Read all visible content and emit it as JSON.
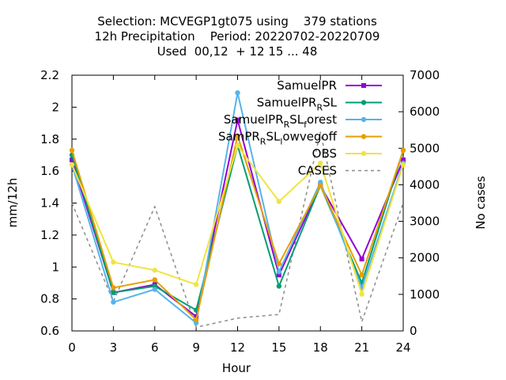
{
  "chart_data": {
    "type": "line",
    "title_lines": [
      "Selection: MCVEGP1gt075 using    379 stations",
      "12h Precipitation    Period: 20220702-20220709",
      "Used  00,12  + 12 15 ... 48"
    ],
    "xlabel": "Hour",
    "ylabel": "mm/12h",
    "y2label": "No cases",
    "x": [
      0,
      3,
      6,
      9,
      12,
      15,
      18,
      21,
      24
    ],
    "xlim": [
      0,
      24
    ],
    "ylim": [
      0.6,
      2.2
    ],
    "y2lim": [
      0,
      7000
    ],
    "xticks": [
      "0",
      "3",
      "6",
      "9",
      "12",
      "15",
      "18",
      "21",
      "24"
    ],
    "yticks": [
      "0.6",
      "0.8",
      "1",
      "1.2",
      "1.4",
      "1.6",
      "1.8",
      "2",
      "2.2"
    ],
    "y2ticks": [
      "0",
      "1000",
      "2000",
      "3000",
      "4000",
      "5000",
      "6000",
      "7000"
    ],
    "legend_position": "top-right",
    "grid": false,
    "series": [
      {
        "name": "SamuelPR",
        "label_parts": [
          [
            "SamuelPR",
            ""
          ]
        ],
        "color": "#9400d3",
        "marker": "square",
        "dash": "",
        "axis": "y",
        "values": [
          1.67,
          0.84,
          0.89,
          0.69,
          1.92,
          0.95,
          1.51,
          1.05,
          1.67
        ]
      },
      {
        "name": "SamuelPR_RSL",
        "label_parts": [
          [
            "SamuelPR",
            ""
          ],
          [
            "R",
            "sub"
          ],
          [
            "SL",
            ""
          ]
        ],
        "color": "#009e73",
        "marker": "circle",
        "dash": "",
        "axis": "y",
        "values": [
          1.7,
          0.84,
          0.88,
          0.73,
          1.76,
          0.88,
          1.51,
          0.9,
          1.73
        ]
      },
      {
        "name": "SamuelPR_RSL_forest",
        "label_parts": [
          [
            "SamuelPR",
            ""
          ],
          [
            "R",
            "sub"
          ],
          [
            "SL",
            ""
          ],
          [
            "f",
            "sub"
          ],
          [
            "orest",
            ""
          ]
        ],
        "color": "#56b4e9",
        "marker": "circle",
        "dash": "",
        "axis": "y",
        "values": [
          1.64,
          0.78,
          0.86,
          0.65,
          2.09,
          0.97,
          1.53,
          0.87,
          1.65
        ]
      },
      {
        "name": "SamPR_RSL_lowvegoff",
        "label_parts": [
          [
            "SamPR",
            ""
          ],
          [
            "R",
            "sub"
          ],
          [
            "SL",
            ""
          ],
          [
            "l",
            "sub"
          ],
          [
            "owvegoff",
            ""
          ]
        ],
        "color": "#e69f00",
        "marker": "circle",
        "dash": "",
        "axis": "y",
        "values": [
          1.73,
          0.87,
          0.92,
          0.67,
          1.82,
          1.02,
          1.51,
          0.95,
          1.73
        ]
      },
      {
        "name": "OBS",
        "label_parts": [
          [
            "OBS",
            ""
          ]
        ],
        "color": "#f0e442",
        "marker": "circle",
        "dash": "",
        "axis": "y",
        "values": [
          1.64,
          1.03,
          0.98,
          0.89,
          1.76,
          1.41,
          1.65,
          0.83,
          1.64
        ]
      },
      {
        "name": "CASES",
        "label_parts": [
          [
            "CASES",
            ""
          ]
        ],
        "color": "#8c8c8c",
        "marker": "none",
        "dash": "4,4",
        "axis": "y2",
        "values": [
          3500,
          800,
          3400,
          100,
          350,
          450,
          5450,
          250,
          3500
        ]
      }
    ]
  }
}
